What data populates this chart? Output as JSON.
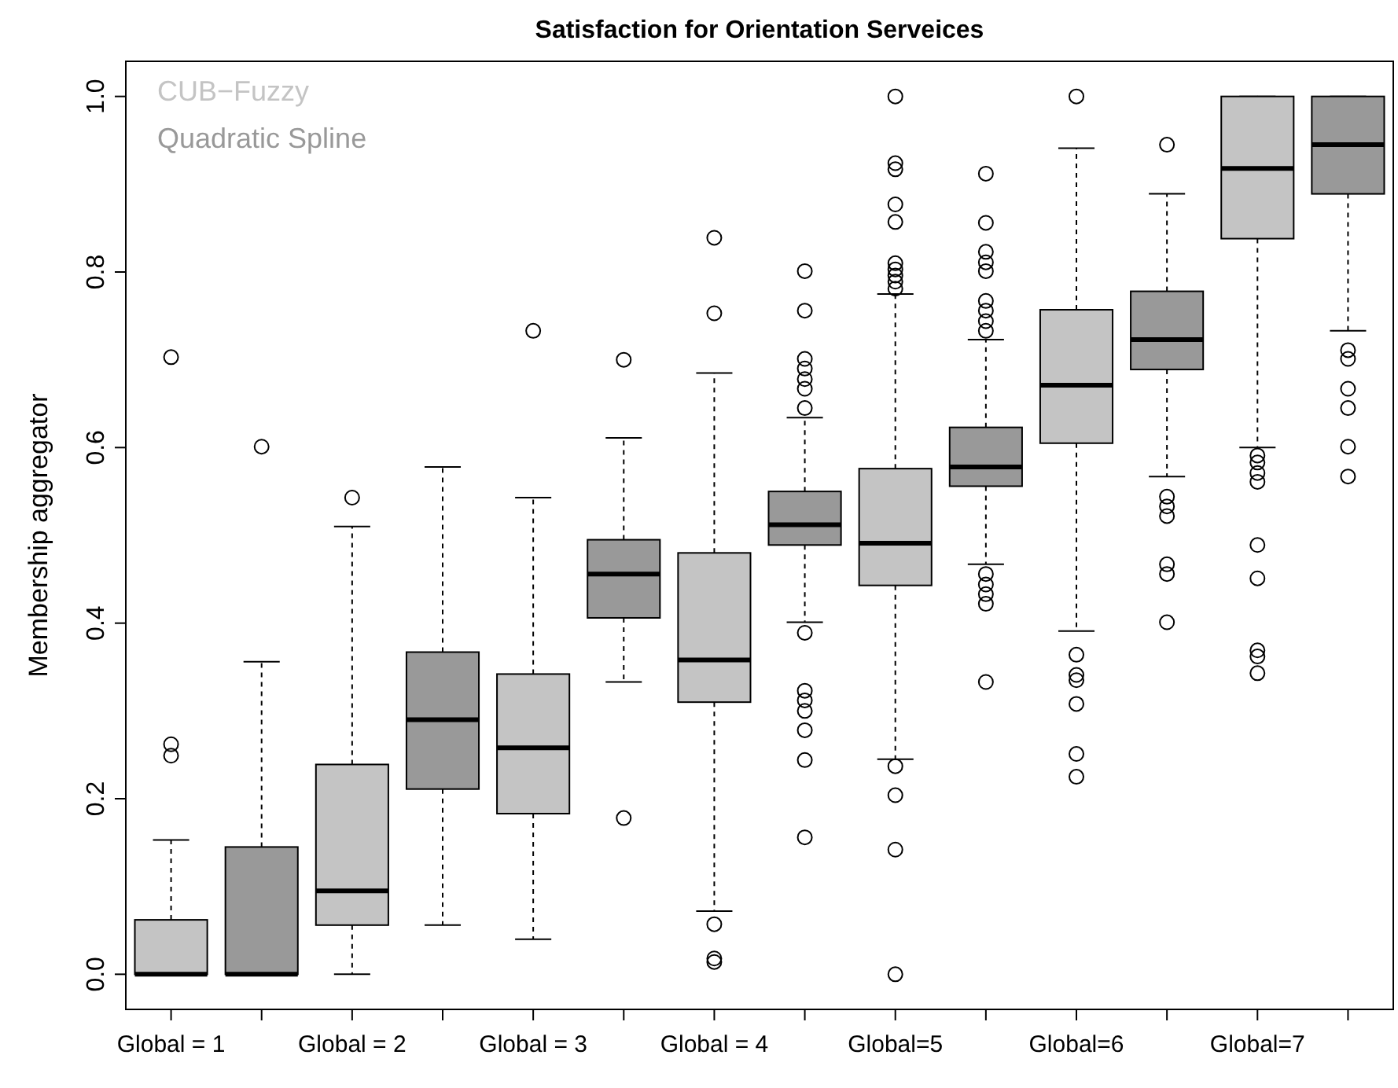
{
  "chart_data": {
    "type": "box",
    "title": "Satisfaction for Orientation Serveices",
    "ylabel": "Membership aggregator",
    "categories": [
      "Global = 1",
      null,
      "Global = 2",
      null,
      "Global = 3",
      null,
      "Global = 4",
      null,
      "Global=5",
      null,
      "Global=6",
      null,
      "Global=7",
      null
    ],
    "ylim": [
      -0.04,
      1.04
    ],
    "yticks": [
      {
        "value": 0,
        "label": "0.0"
      },
      0.2,
      0.4,
      0.6,
      0.8,
      {
        "value": 1,
        "label": "1.0"
      }
    ],
    "grid": false,
    "legend": "top left",
    "series": [
      {
        "name": "CUB−Fuzzy",
        "color": "#c4c4c4",
        "boxes": [
          {
            "low": 0,
            "q1": 0,
            "median": 0,
            "q3": 0.062,
            "high": 0.153,
            "outliers": [
              0.249,
              0.262,
              0.703
            ]
          },
          null,
          {
            "low": 0,
            "q1": 0.056,
            "median": 0.095,
            "q3": 0.239,
            "high": 0.51,
            "outliers": [
              0.543
            ]
          },
          null,
          {
            "low": 0.04,
            "q1": 0.183,
            "median": 0.258,
            "q3": 0.342,
            "high": 0.543,
            "outliers": [
              0.733
            ]
          },
          null,
          {
            "low": 0.072,
            "q1": 0.31,
            "median": 0.358,
            "q3": 0.48,
            "high": 0.685,
            "outliers": [
              0.839,
              0.753,
              0.057,
              0.018,
              0.014
            ]
          },
          null,
          {
            "low": 0.245,
            "q1": 0.443,
            "median": 0.491,
            "q3": 0.576,
            "high": 0.775,
            "outliers": [
              1.0,
              0.924,
              0.917,
              0.877,
              0.857,
              0.81,
              0.803,
              0.796,
              0.789,
              0.781,
              0.237,
              0.204,
              0.142,
              0.0
            ]
          },
          null,
          {
            "low": 0.391,
            "q1": 0.605,
            "median": 0.671,
            "q3": 0.757,
            "high": 0.941,
            "outliers": [
              1.0,
              0.364,
              0.341,
              0.335,
              0.308,
              0.251,
              0.225
            ]
          },
          null,
          {
            "low": 0.6,
            "q1": 0.838,
            "median": 0.918,
            "q3": 1.0,
            "high": 1.0,
            "outliers": [
              0.591,
              0.583,
              0.571,
              0.561,
              0.489,
              0.451,
              0.369,
              0.362,
              0.343
            ]
          },
          null
        ]
      },
      {
        "name": "Quadratic Spline",
        "color": "#999999",
        "boxes": [
          null,
          {
            "low": 0,
            "q1": 0,
            "median": 0,
            "q3": 0.145,
            "high": 0.356,
            "outliers": [
              0.601
            ]
          },
          null,
          {
            "low": 0.056,
            "q1": 0.211,
            "median": 0.29,
            "q3": 0.367,
            "high": 0.578
          },
          null,
          {
            "low": 0.333,
            "q1": 0.406,
            "median": 0.456,
            "q3": 0.495,
            "high": 0.611,
            "outliers": [
              0.7,
              0.178
            ]
          },
          null,
          {
            "low": 0.401,
            "q1": 0.489,
            "median": 0.512,
            "q3": 0.55,
            "high": 0.634,
            "outliers": [
              0.801,
              0.756,
              0.701,
              0.69,
              0.678,
              0.667,
              0.645,
              0.389,
              0.323,
              0.312,
              0.3,
              0.278,
              0.244,
              0.156
            ]
          },
          null,
          {
            "low": 0.467,
            "q1": 0.556,
            "median": 0.578,
            "q3": 0.623,
            "high": 0.723,
            "outliers": [
              0.912,
              0.856,
              0.823,
              0.811,
              0.801,
              0.767,
              0.756,
              0.744,
              0.733,
              0.456,
              0.444,
              0.433,
              0.422,
              0.333
            ]
          },
          null,
          {
            "low": 0.567,
            "q1": 0.689,
            "median": 0.723,
            "q3": 0.778,
            "high": 0.889,
            "outliers": [
              0.945,
              0.544,
              0.533,
              0.522,
              0.467,
              0.456,
              0.401
            ]
          },
          null,
          {
            "low": 0.733,
            "q1": 0.889,
            "median": 0.945,
            "q3": 1.0,
            "high": 1.0,
            "outliers": [
              0.711,
              0.701,
              0.667,
              0.645,
              0.601,
              0.567
            ]
          }
        ]
      }
    ]
  }
}
